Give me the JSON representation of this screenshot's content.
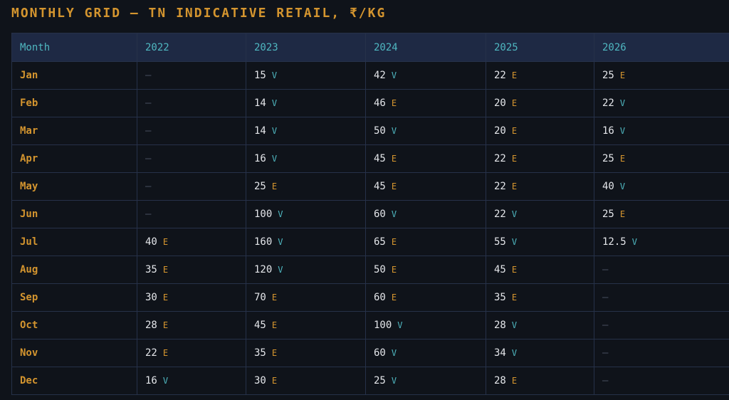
{
  "title": "MONTHLY GRID — TN INDICATIVE RETAIL, ₹/KG",
  "table": {
    "header": [
      "Month",
      "2022",
      "2023",
      "2024",
      "2025",
      "2026"
    ],
    "rows": [
      [
        "Jan",
        "—",
        [
          15,
          "V"
        ],
        [
          42,
          "V"
        ],
        [
          22,
          "E"
        ],
        [
          25,
          "E"
        ]
      ],
      [
        "Feb",
        "—",
        [
          14,
          "V"
        ],
        [
          46,
          "E"
        ],
        [
          20,
          "E"
        ],
        [
          22,
          "V"
        ]
      ],
      [
        "Mar",
        "—",
        [
          14,
          "V"
        ],
        [
          50,
          "V"
        ],
        [
          20,
          "E"
        ],
        [
          16,
          "V"
        ]
      ],
      [
        "Apr",
        "—",
        [
          16,
          "V"
        ],
        [
          45,
          "E"
        ],
        [
          22,
          "E"
        ],
        [
          25,
          "E"
        ]
      ],
      [
        "May",
        "—",
        [
          25,
          "E"
        ],
        [
          45,
          "E"
        ],
        [
          22,
          "E"
        ],
        [
          40,
          "V"
        ]
      ],
      [
        "Jun",
        "—",
        [
          100,
          "V"
        ],
        [
          60,
          "V"
        ],
        [
          22,
          "V"
        ],
        [
          25,
          "E"
        ]
      ],
      [
        "Jul",
        [
          40,
          "E"
        ],
        [
          160,
          "V"
        ],
        [
          65,
          "E"
        ],
        [
          55,
          "V"
        ],
        [
          12.5,
          "V"
        ]
      ],
      [
        "Aug",
        [
          35,
          "E"
        ],
        [
          120,
          "V"
        ],
        [
          50,
          "E"
        ],
        [
          45,
          "E"
        ],
        "—"
      ],
      [
        "Sep",
        [
          30,
          "E"
        ],
        [
          70,
          "E"
        ],
        [
          60,
          "E"
        ],
        [
          35,
          "E"
        ],
        "—"
      ],
      [
        "Oct",
        [
          28,
          "E"
        ],
        [
          45,
          "E"
        ],
        [
          100,
          "V"
        ],
        [
          28,
          "V"
        ],
        "—"
      ],
      [
        "Nov",
        [
          22,
          "E"
        ],
        [
          35,
          "E"
        ],
        [
          60,
          "V"
        ],
        [
          34,
          "V"
        ],
        "—"
      ],
      [
        "Dec",
        [
          16,
          "V"
        ],
        [
          30,
          "E"
        ],
        [
          25,
          "V"
        ],
        [
          28,
          "E"
        ],
        "—"
      ]
    ]
  }
}
